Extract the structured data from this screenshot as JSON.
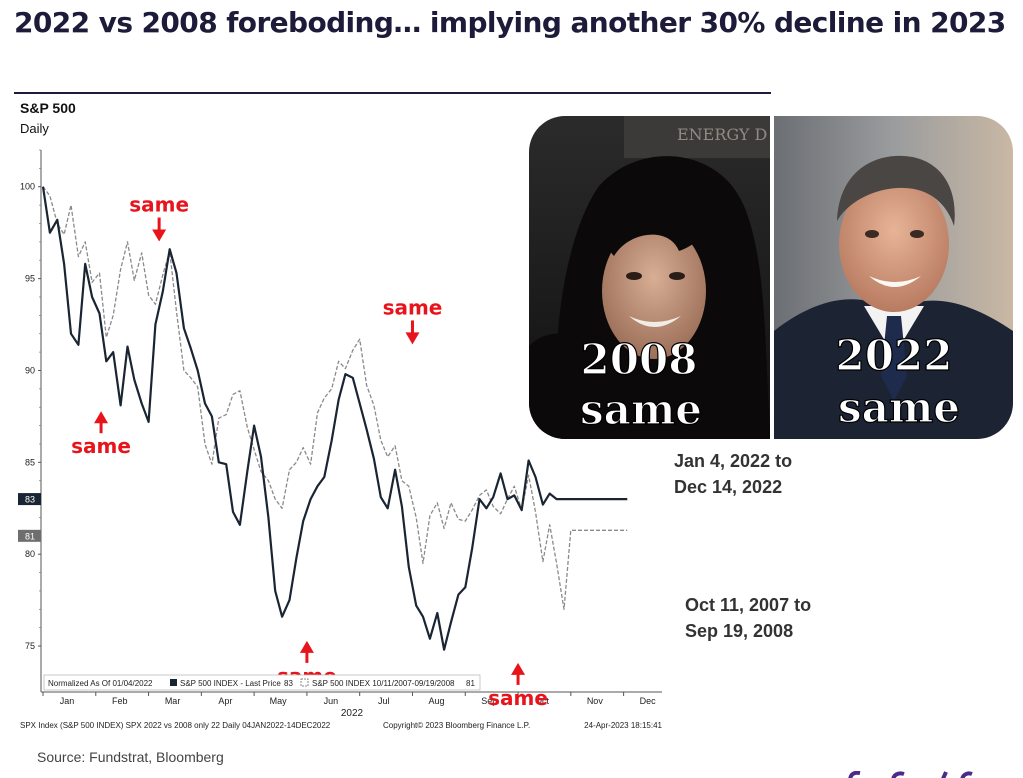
{
  "header": {
    "title": "2022 vs 2008 foreboding… implying another 30% decline in 2023"
  },
  "chart_data": {
    "type": "line",
    "title": "S&P 500",
    "subtitle": "Daily",
    "xlabel": "2022",
    "ylabel": "",
    "x_ticks": [
      "Jan",
      "Feb",
      "Mar",
      "Apr",
      "May",
      "Jun",
      "Jul",
      "Aug",
      "Sep",
      "Oct",
      "Nov",
      "Dec"
    ],
    "y_ticks": [
      75,
      80,
      85,
      90,
      95,
      100
    ],
    "ylim": [
      72.5,
      102
    ],
    "grid": false,
    "legend_position": "bottom-left",
    "legend_prefix": "Normalized As Of 01/04/2022",
    "series": [
      {
        "name": "S&P 500 INDEX - Last Price",
        "last_value": 83,
        "last_value_label": "83",
        "color": "#1a2533",
        "style": "solid",
        "x": [
          0.0,
          0.13,
          0.27,
          0.4,
          0.53,
          0.67,
          0.8,
          0.93,
          1.07,
          1.2,
          1.33,
          1.47,
          1.6,
          1.73,
          1.87,
          2.0,
          2.13,
          2.27,
          2.4,
          2.53,
          2.67,
          2.8,
          2.93,
          3.07,
          3.2,
          3.33,
          3.47,
          3.6,
          3.73,
          3.87,
          4.0,
          4.13,
          4.27,
          4.4,
          4.53,
          4.67,
          4.8,
          4.93,
          5.07,
          5.2,
          5.33,
          5.47,
          5.6,
          5.73,
          5.87,
          6.0,
          6.13,
          6.27,
          6.4,
          6.53,
          6.67,
          6.8,
          6.93,
          7.07,
          7.2,
          7.33,
          7.47,
          7.6,
          7.73,
          7.87,
          8.0,
          8.13,
          8.27,
          8.4,
          8.53,
          8.67,
          8.8,
          8.93,
          9.07,
          9.2,
          9.33,
          9.47,
          9.6,
          9.73,
          9.87,
          10.0,
          10.13,
          10.27,
          10.4,
          10.53,
          10.67,
          10.8,
          10.93,
          11.07
        ],
        "values": [
          100.0,
          97.5,
          98.2,
          95.8,
          92.0,
          91.4,
          95.8,
          94.0,
          93.1,
          90.5,
          91.0,
          88.1,
          91.3,
          89.5,
          88.2,
          87.2,
          92.5,
          94.3,
          96.6,
          95.3,
          92.3,
          91.2,
          90.0,
          88.2,
          87.5,
          85.0,
          84.9,
          82.3,
          81.6,
          84.5,
          87.0,
          85.3,
          82.0,
          78.0,
          76.6,
          77.5,
          79.8,
          81.8,
          83.0,
          83.7,
          84.2,
          86.2,
          88.4,
          89.8,
          89.6,
          88.2,
          86.8,
          85.2,
          83.1,
          82.5,
          84.6,
          82.6,
          79.3,
          77.2,
          76.6,
          75.4,
          76.8,
          74.8,
          76.3,
          77.8,
          78.2,
          80.3,
          83.0,
          82.5,
          83.1,
          84.4,
          83.0,
          83.2,
          82.4,
          85.1,
          84.2,
          82.7,
          83.3,
          83.0,
          83.0,
          83.0,
          83.0,
          83.0,
          83.0,
          83.0,
          83.0,
          83.0,
          83.0,
          83.0
        ]
      },
      {
        "name": "S&P 500 INDEX 10/11/2007-09/19/2008",
        "last_value": 81,
        "last_value_label": "81",
        "color": "#8a8a8a",
        "style": "dashed",
        "x": [
          0.0,
          0.13,
          0.27,
          0.4,
          0.53,
          0.67,
          0.8,
          0.93,
          1.07,
          1.2,
          1.33,
          1.47,
          1.6,
          1.73,
          1.87,
          2.0,
          2.13,
          2.27,
          2.4,
          2.53,
          2.67,
          2.8,
          2.93,
          3.07,
          3.2,
          3.33,
          3.47,
          3.6,
          3.73,
          3.87,
          4.0,
          4.13,
          4.27,
          4.4,
          4.53,
          4.67,
          4.8,
          4.93,
          5.07,
          5.2,
          5.33,
          5.47,
          5.6,
          5.73,
          5.87,
          6.0,
          6.13,
          6.27,
          6.4,
          6.53,
          6.67,
          6.8,
          6.93,
          7.07,
          7.2,
          7.33,
          7.47,
          7.6,
          7.73,
          7.87,
          8.0,
          8.13,
          8.27,
          8.4,
          8.53,
          8.67,
          8.8,
          8.93,
          9.07,
          9.2,
          9.33,
          9.47,
          9.6,
          9.73,
          9.87,
          10.0,
          10.13,
          10.27,
          10.4,
          10.53,
          10.67,
          10.8,
          10.93,
          11.07
        ],
        "values": [
          100.0,
          99.5,
          98.0,
          97.4,
          99.0,
          96.2,
          97.0,
          94.8,
          95.3,
          91.8,
          93.0,
          95.5,
          97.0,
          94.9,
          96.4,
          94.1,
          93.6,
          95.2,
          96.5,
          93.2,
          90.0,
          89.6,
          89.1,
          86.0,
          84.9,
          87.4,
          87.6,
          88.7,
          88.9,
          86.9,
          85.7,
          84.5,
          84.0,
          83.0,
          82.5,
          84.6,
          85.0,
          85.8,
          84.9,
          87.7,
          88.5,
          89.0,
          90.5,
          90.1,
          91.1,
          91.7,
          89.2,
          88.1,
          86.2,
          85.3,
          85.9,
          84.0,
          83.7,
          82.0,
          79.5,
          82.1,
          82.8,
          81.4,
          82.8,
          81.9,
          81.8,
          82.4,
          83.2,
          83.5,
          82.6,
          82.2,
          83.0,
          83.7,
          82.4,
          84.3,
          82.3,
          79.6,
          81.6,
          79.5,
          77.0,
          81.3,
          81.3,
          81.3,
          81.3,
          81.3,
          81.3,
          81.3,
          81.3,
          81.3
        ]
      }
    ],
    "annotations": [
      {
        "text": "same",
        "arrow": "down",
        "x": 2.2,
        "y": 96.8
      },
      {
        "text": "same",
        "arrow": "up",
        "x": 1.1,
        "y": 88.0
      },
      {
        "text": "same",
        "arrow": "down",
        "x": 7.0,
        "y": 91.2
      },
      {
        "text": "same",
        "arrow": "up",
        "x": 5.0,
        "y": 75.5
      },
      {
        "text": "same",
        "arrow": "up",
        "x": 9.0,
        "y": 74.3
      }
    ],
    "footer": {
      "left": "SPX Index (S&P 500 INDEX) SPX 2022 vs 2008 only 22  Daily 04JAN2022-14DEC2022",
      "center": "Copyright© 2023 Bloomberg Finance L.P.",
      "right": "24-Apr-2023 18:15:41"
    }
  },
  "image_panel": {
    "left_caption_line1": "2008",
    "left_caption_line2": "same",
    "right_caption_line1": "2022",
    "right_caption_line2": "same",
    "banner_text": "ENERGY D"
  },
  "range_labels": {
    "series_2022_line1": "Jan 4, 2022 to",
    "series_2022_line2": "Dec 14, 2022",
    "series_2008_line1": "Oct 11, 2007 to",
    "series_2008_line2": "Sep 19, 2008"
  },
  "footer": {
    "source": "Source: Fundstrat, Bloomberg"
  },
  "colors": {
    "title": "#1c1c3a",
    "annotation": "#e8141b",
    "series_2022": "#1a2533",
    "series_2008": "#8a8a8a",
    "text_gray": "#333333"
  }
}
